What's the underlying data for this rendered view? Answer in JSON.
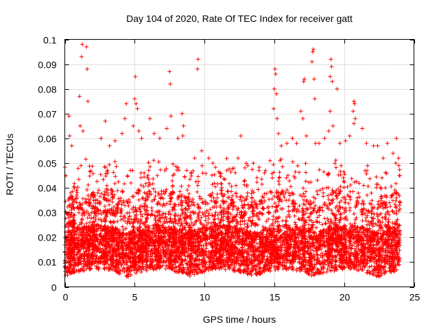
{
  "chart_data": {
    "type": "scatter",
    "title": "Day 104 of 2020, Rate Of TEC Index for receiver gatt",
    "xlabel": "GPS time / hours",
    "ylabel": "ROTI / TECUs",
    "xlim": [
      0,
      25
    ],
    "ylim": [
      0,
      0.1
    ],
    "x_ticks": [
      0,
      5,
      10,
      15,
      20,
      25
    ],
    "x_tick_labels": [
      "0",
      "5",
      "10",
      "15",
      "20",
      "25"
    ],
    "y_ticks": [
      0,
      0.01,
      0.02,
      0.03,
      0.04,
      0.05,
      0.06,
      0.07,
      0.08,
      0.09,
      0.1
    ],
    "y_tick_labels": [
      "0",
      "0.01",
      "0.02",
      "0.03",
      "0.04",
      "0.05",
      "0.06",
      "0.07",
      "0.08",
      "0.09",
      "0.1"
    ],
    "grid": true,
    "marker": "+",
    "color": "#ff0000",
    "data_range_hours": [
      0,
      24
    ],
    "series": [
      {
        "name": "ROTI",
        "description_of_distribution": "dense band",
        "points": [
          [
            1.25,
            0.098
          ],
          [
            1.55,
            0.097
          ],
          [
            1.2,
            0.093
          ],
          [
            1.6,
            0.088
          ],
          [
            1.05,
            0.077
          ],
          [
            1.65,
            0.075
          ],
          [
            0.3,
            0.069
          ],
          [
            0.35,
            0.061
          ],
          [
            0.5,
            0.057
          ],
          [
            1.1,
            0.065
          ],
          [
            1.3,
            0.063
          ],
          [
            2.9,
            0.067
          ],
          [
            2.6,
            0.06
          ],
          [
            3.2,
            0.057
          ],
          [
            3.6,
            0.059
          ],
          [
            4.4,
            0.074
          ],
          [
            4.3,
            0.068
          ],
          [
            4.1,
            0.062
          ],
          [
            5.05,
            0.085
          ],
          [
            5.0,
            0.076
          ],
          [
            5.1,
            0.074
          ],
          [
            5.2,
            0.072
          ],
          [
            4.9,
            0.065
          ],
          [
            5.3,
            0.063
          ],
          [
            5.5,
            0.06
          ],
          [
            6.1,
            0.068
          ],
          [
            6.4,
            0.062
          ],
          [
            6.8,
            0.06
          ],
          [
            7.3,
            0.064
          ],
          [
            7.6,
            0.069
          ],
          [
            7.5,
            0.087
          ],
          [
            7.55,
            0.082
          ],
          [
            8.1,
            0.06
          ],
          [
            8.4,
            0.07
          ],
          [
            8.5,
            0.065
          ],
          [
            8.45,
            0.061
          ],
          [
            9.55,
            0.092
          ],
          [
            9.5,
            0.088
          ],
          [
            9.8,
            0.055
          ],
          [
            9.3,
            0.052
          ],
          [
            10.3,
            0.052
          ],
          [
            10.6,
            0.05
          ],
          [
            11.1,
            0.046
          ],
          [
            11.6,
            0.047
          ],
          [
            12.1,
            0.048
          ],
          [
            12.6,
            0.061
          ],
          [
            12.4,
            0.052
          ],
          [
            13.1,
            0.049
          ],
          [
            13.5,
            0.05
          ],
          [
            13.9,
            0.047
          ],
          [
            14.3,
            0.046
          ],
          [
            14.7,
            0.051
          ],
          [
            15.05,
            0.088
          ],
          [
            15.1,
            0.086
          ],
          [
            15.0,
            0.08
          ],
          [
            15.15,
            0.078
          ],
          [
            14.95,
            0.072
          ],
          [
            15.2,
            0.068
          ],
          [
            15.3,
            0.062
          ],
          [
            15.5,
            0.057
          ],
          [
            15.9,
            0.058
          ],
          [
            16.3,
            0.06
          ],
          [
            16.6,
            0.058
          ],
          [
            16.9,
            0.071
          ],
          [
            17.1,
            0.083
          ],
          [
            17.15,
            0.084
          ],
          [
            17.05,
            0.068
          ],
          [
            17.3,
            0.061
          ],
          [
            17.8,
            0.096
          ],
          [
            17.75,
            0.095
          ],
          [
            17.7,
            0.091
          ],
          [
            17.85,
            0.084
          ],
          [
            17.9,
            0.076
          ],
          [
            17.95,
            0.058
          ],
          [
            18.2,
            0.058
          ],
          [
            18.6,
            0.06
          ],
          [
            18.9,
            0.063
          ],
          [
            19.05,
            0.092
          ],
          [
            19.1,
            0.089
          ],
          [
            19.0,
            0.085
          ],
          [
            19.15,
            0.083
          ],
          [
            19.0,
            0.071
          ],
          [
            19.2,
            0.065
          ],
          [
            19.5,
            0.08
          ],
          [
            19.7,
            0.058
          ],
          [
            20.1,
            0.059
          ],
          [
            20.4,
            0.061
          ],
          [
            20.7,
            0.075
          ],
          [
            20.75,
            0.074
          ],
          [
            20.65,
            0.071
          ],
          [
            20.8,
            0.068
          ],
          [
            20.7,
            0.066
          ],
          [
            21.3,
            0.064
          ],
          [
            21.6,
            0.058
          ],
          [
            22.1,
            0.057
          ],
          [
            22.4,
            0.057
          ],
          [
            22.8,
            0.052
          ],
          [
            23.1,
            0.058
          ],
          [
            23.5,
            0.054
          ],
          [
            23.75,
            0.06
          ],
          [
            23.9,
            0.052
          ],
          [
            23.7,
            0.05
          ],
          [
            23.95,
            0.045
          ]
        ]
      }
    ]
  }
}
